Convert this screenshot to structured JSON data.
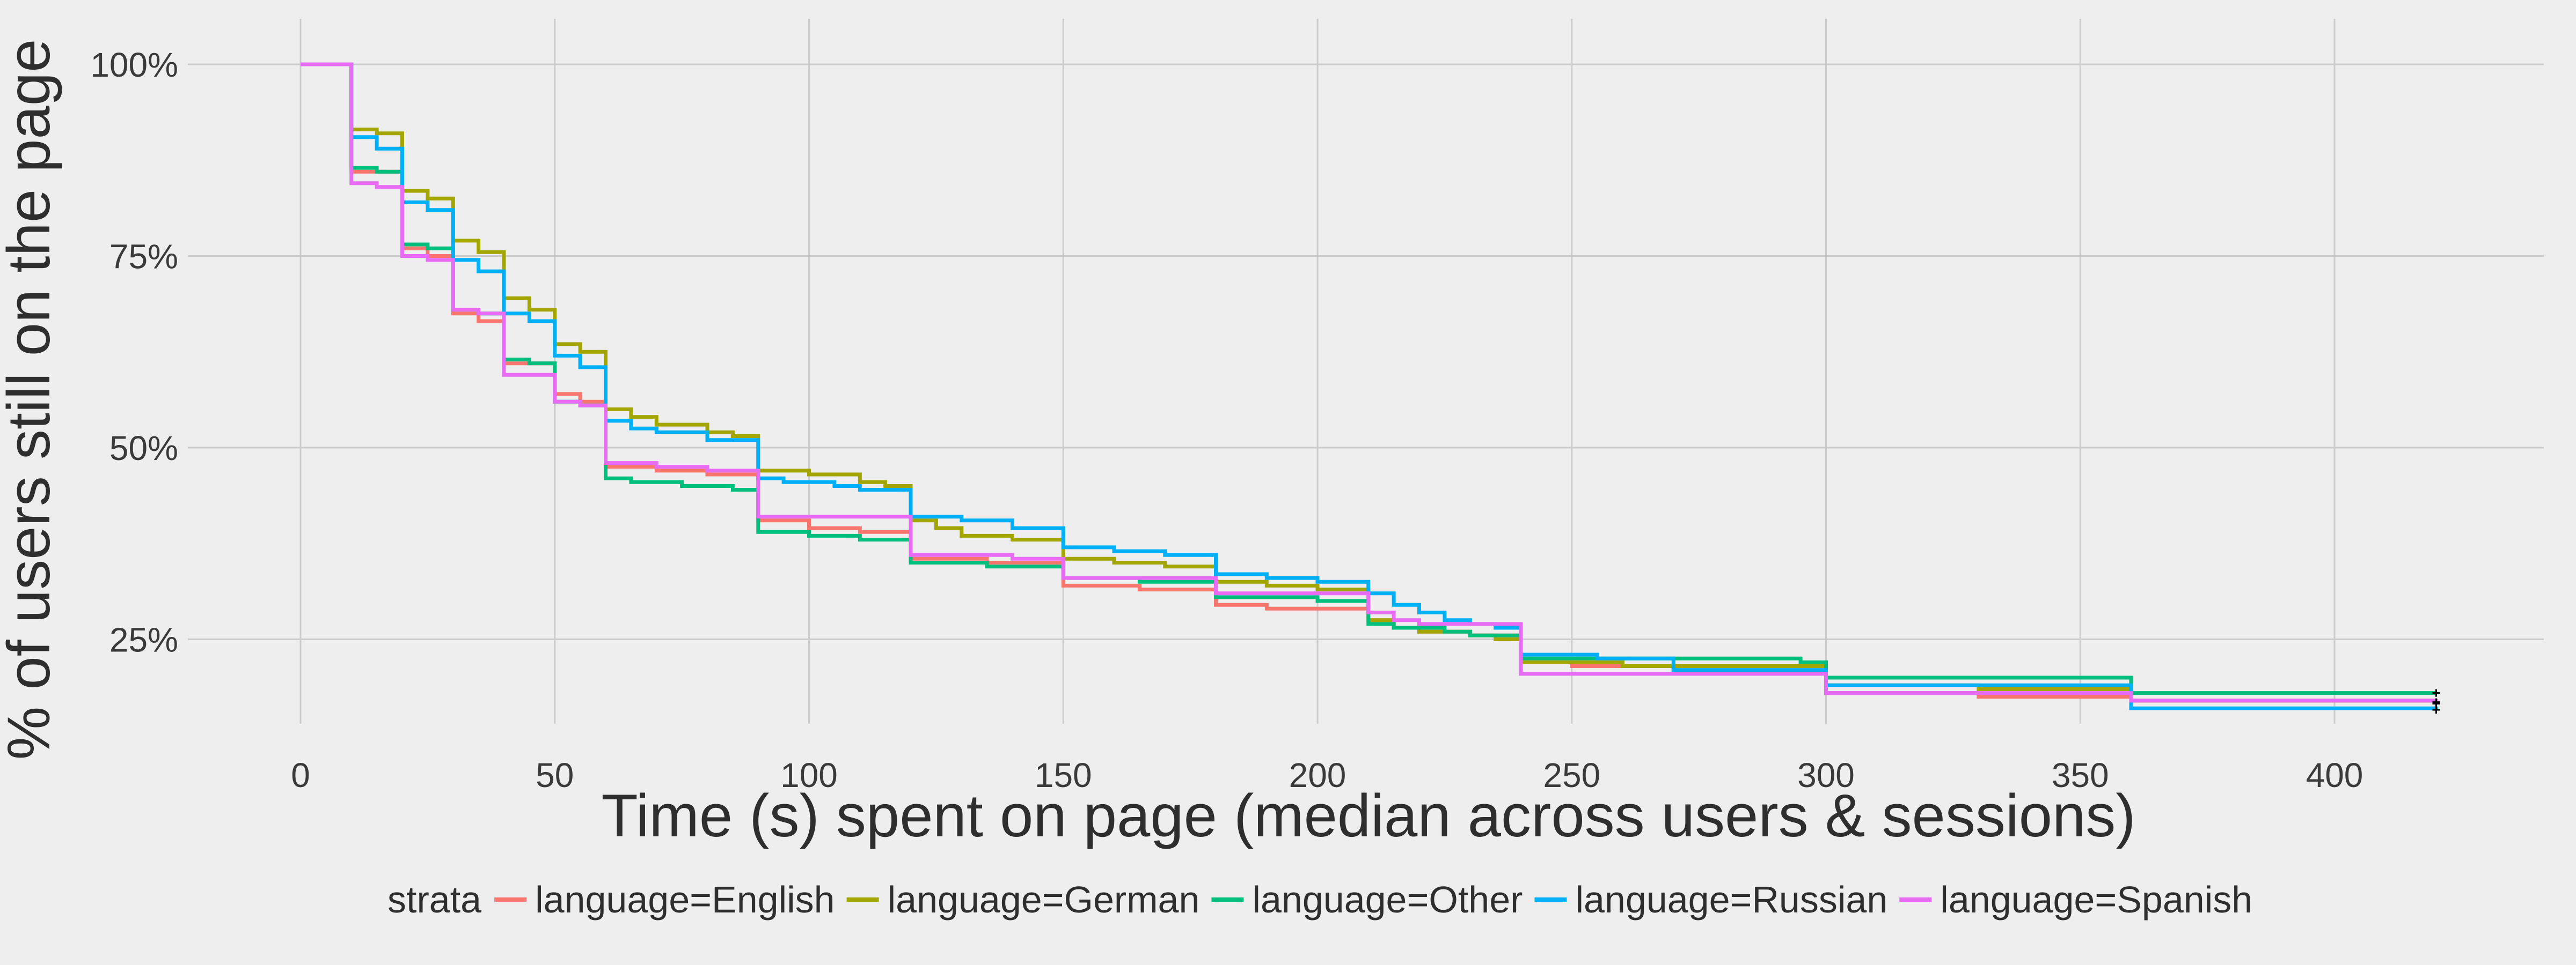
{
  "chart_data": {
    "type": "line",
    "subtype": "step",
    "xlabel": "Time (s) spent on page (median across users & sessions)",
    "ylabel": "% of users still on the page",
    "xlim": [
      -20,
      440
    ],
    "ylim": [
      0.1,
      1.04
    ],
    "x_ticks": [
      0,
      50,
      100,
      150,
      200,
      250,
      300,
      350,
      400
    ],
    "x_tick_labels": [
      "0",
      "50",
      "100",
      "150",
      "200",
      "250",
      "300",
      "350",
      "400"
    ],
    "y_ticks": [
      1.0,
      0.75,
      0.5,
      0.25
    ],
    "y_tick_labels": [
      "100%",
      "75%",
      "50%",
      "25%"
    ],
    "grid": true,
    "legend": {
      "position": "bottom",
      "title": "strata"
    },
    "series": [
      {
        "name": "language=English",
        "color": "#F8766D",
        "points": [
          [
            0,
            1.0
          ],
          [
            10,
            0.86
          ],
          [
            20,
            0.76
          ],
          [
            25,
            0.75
          ],
          [
            30,
            0.675
          ],
          [
            35,
            0.665
          ],
          [
            40,
            0.61
          ],
          [
            45,
            0.61
          ],
          [
            50,
            0.57
          ],
          [
            55,
            0.56
          ],
          [
            60,
            0.475
          ],
          [
            70,
            0.47
          ],
          [
            80,
            0.465
          ],
          [
            90,
            0.405
          ],
          [
            100,
            0.395
          ],
          [
            110,
            0.39
          ],
          [
            120,
            0.355
          ],
          [
            135,
            0.35
          ],
          [
            150,
            0.32
          ],
          [
            165,
            0.315
          ],
          [
            180,
            0.295
          ],
          [
            190,
            0.29
          ],
          [
            210,
            0.275
          ],
          [
            215,
            0.265
          ],
          [
            220,
            0.26
          ],
          [
            230,
            0.255
          ],
          [
            240,
            0.22
          ],
          [
            250,
            0.215
          ],
          [
            270,
            0.21
          ],
          [
            300,
            0.18
          ],
          [
            330,
            0.175
          ],
          [
            360,
            0.17
          ],
          [
            420,
            0.168
          ]
        ]
      },
      {
        "name": "language=German",
        "color": "#A3A500",
        "points": [
          [
            0,
            1.0
          ],
          [
            10,
            0.915
          ],
          [
            15,
            0.91
          ],
          [
            20,
            0.835
          ],
          [
            25,
            0.825
          ],
          [
            30,
            0.77
          ],
          [
            35,
            0.755
          ],
          [
            40,
            0.695
          ],
          [
            45,
            0.68
          ],
          [
            50,
            0.635
          ],
          [
            55,
            0.625
          ],
          [
            60,
            0.55
          ],
          [
            65,
            0.54
          ],
          [
            70,
            0.53
          ],
          [
            80,
            0.52
          ],
          [
            85,
            0.515
          ],
          [
            90,
            0.47
          ],
          [
            100,
            0.465
          ],
          [
            110,
            0.455
          ],
          [
            115,
            0.45
          ],
          [
            120,
            0.405
          ],
          [
            125,
            0.395
          ],
          [
            130,
            0.385
          ],
          [
            140,
            0.38
          ],
          [
            150,
            0.355
          ],
          [
            160,
            0.35
          ],
          [
            170,
            0.345
          ],
          [
            180,
            0.325
          ],
          [
            190,
            0.32
          ],
          [
            200,
            0.315
          ],
          [
            210,
            0.275
          ],
          [
            215,
            0.265
          ],
          [
            220,
            0.26
          ],
          [
            230,
            0.255
          ],
          [
            235,
            0.25
          ],
          [
            240,
            0.22
          ],
          [
            260,
            0.215
          ],
          [
            300,
            0.19
          ],
          [
            330,
            0.185
          ],
          [
            360,
            0.17
          ],
          [
            420,
            0.168
          ]
        ]
      },
      {
        "name": "language=Other",
        "color": "#00BF7D",
        "points": [
          [
            0,
            1.0
          ],
          [
            10,
            0.865
          ],
          [
            15,
            0.86
          ],
          [
            20,
            0.765
          ],
          [
            25,
            0.76
          ],
          [
            30,
            0.68
          ],
          [
            35,
            0.675
          ],
          [
            40,
            0.615
          ],
          [
            45,
            0.61
          ],
          [
            50,
            0.56
          ],
          [
            55,
            0.555
          ],
          [
            60,
            0.46
          ],
          [
            65,
            0.455
          ],
          [
            75,
            0.45
          ],
          [
            85,
            0.445
          ],
          [
            90,
            0.39
          ],
          [
            100,
            0.385
          ],
          [
            110,
            0.38
          ],
          [
            120,
            0.35
          ],
          [
            135,
            0.345
          ],
          [
            150,
            0.33
          ],
          [
            165,
            0.325
          ],
          [
            180,
            0.305
          ],
          [
            200,
            0.3
          ],
          [
            210,
            0.27
          ],
          [
            215,
            0.265
          ],
          [
            225,
            0.26
          ],
          [
            230,
            0.255
          ],
          [
            240,
            0.225
          ],
          [
            260,
            0.225
          ],
          [
            270,
            0.225
          ],
          [
            295,
            0.22
          ],
          [
            300,
            0.2
          ],
          [
            320,
            0.2
          ],
          [
            360,
            0.18
          ],
          [
            420,
            0.18
          ]
        ]
      },
      {
        "name": "language=Russian",
        "color": "#00B0F6",
        "points": [
          [
            0,
            1.0
          ],
          [
            10,
            0.905
          ],
          [
            15,
            0.89
          ],
          [
            20,
            0.82
          ],
          [
            25,
            0.81
          ],
          [
            30,
            0.745
          ],
          [
            35,
            0.73
          ],
          [
            40,
            0.675
          ],
          [
            45,
            0.665
          ],
          [
            50,
            0.62
          ],
          [
            55,
            0.605
          ],
          [
            60,
            0.535
          ],
          [
            65,
            0.525
          ],
          [
            70,
            0.52
          ],
          [
            80,
            0.51
          ],
          [
            90,
            0.46
          ],
          [
            95,
            0.455
          ],
          [
            105,
            0.45
          ],
          [
            110,
            0.445
          ],
          [
            120,
            0.41
          ],
          [
            130,
            0.405
          ],
          [
            140,
            0.395
          ],
          [
            150,
            0.37
          ],
          [
            160,
            0.365
          ],
          [
            170,
            0.36
          ],
          [
            180,
            0.335
          ],
          [
            190,
            0.33
          ],
          [
            200,
            0.325
          ],
          [
            210,
            0.31
          ],
          [
            215,
            0.295
          ],
          [
            220,
            0.285
          ],
          [
            225,
            0.275
          ],
          [
            230,
            0.27
          ],
          [
            235,
            0.265
          ],
          [
            240,
            0.23
          ],
          [
            255,
            0.225
          ],
          [
            270,
            0.21
          ],
          [
            300,
            0.19
          ],
          [
            360,
            0.16
          ],
          [
            420,
            0.158
          ]
        ]
      },
      {
        "name": "language=Spanish",
        "color": "#E76BF3",
        "points": [
          [
            0,
            1.0
          ],
          [
            10,
            0.845
          ],
          [
            15,
            0.84
          ],
          [
            20,
            0.75
          ],
          [
            25,
            0.745
          ],
          [
            30,
            0.68
          ],
          [
            35,
            0.675
          ],
          [
            40,
            0.595
          ],
          [
            50,
            0.56
          ],
          [
            55,
            0.555
          ],
          [
            60,
            0.48
          ],
          [
            70,
            0.475
          ],
          [
            80,
            0.47
          ],
          [
            90,
            0.41
          ],
          [
            110,
            0.41
          ],
          [
            120,
            0.36
          ],
          [
            140,
            0.355
          ],
          [
            150,
            0.33
          ],
          [
            160,
            0.33
          ],
          [
            180,
            0.31
          ],
          [
            210,
            0.285
          ],
          [
            215,
            0.275
          ],
          [
            220,
            0.27
          ],
          [
            230,
            0.27
          ],
          [
            240,
            0.205
          ],
          [
            270,
            0.205
          ],
          [
            290,
            0.205
          ],
          [
            300,
            0.18
          ],
          [
            330,
            0.18
          ],
          [
            360,
            0.17
          ],
          [
            420,
            0.166
          ]
        ]
      }
    ]
  }
}
